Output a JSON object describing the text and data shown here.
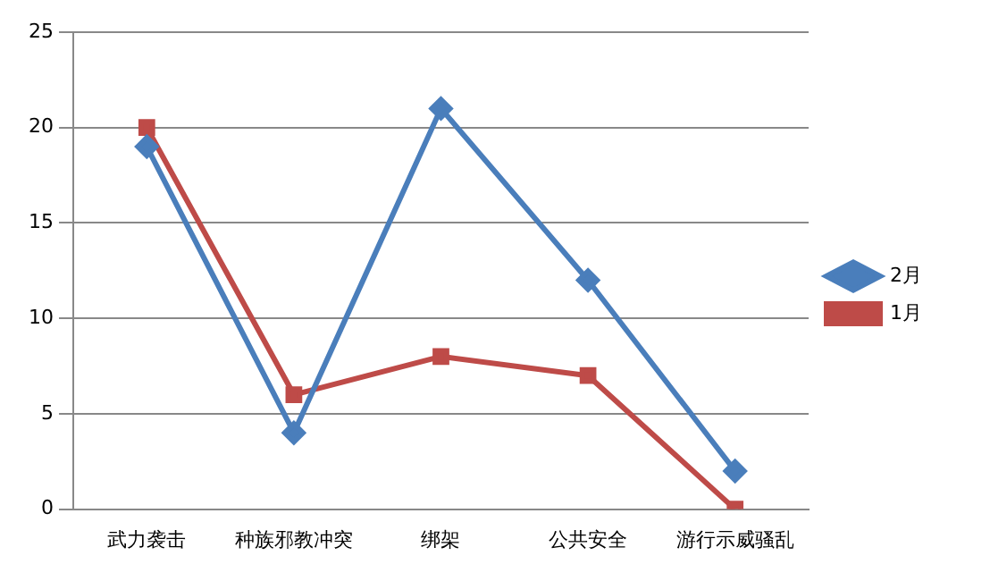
{
  "chart_data": {
    "type": "line",
    "categories": [
      "武力袭击",
      "种族邪教冲突",
      "绑架",
      "公共安全",
      "游行示威骚乱"
    ],
    "series": [
      {
        "name": "2月",
        "color": "#4a7ebb",
        "values": [
          19,
          4,
          21,
          12,
          2
        ],
        "marker": "diamond"
      },
      {
        "name": "1月",
        "color": "#be4b48",
        "values": [
          20,
          6,
          8,
          7,
          0
        ],
        "marker": "square"
      }
    ],
    "ylim": [
      0,
      25
    ],
    "yticks": [
      0,
      5,
      10,
      15,
      20,
      25
    ],
    "grid": "y",
    "legend": "right",
    "line_style": "solid"
  }
}
